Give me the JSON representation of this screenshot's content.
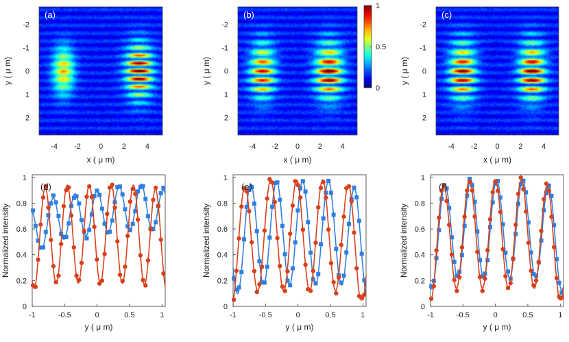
{
  "chart_data": [
    {
      "id": "a",
      "type": "heatmap",
      "panel_label": "(a)",
      "xlabel": "x ( μ m)",
      "ylabel": "y ( μ m)",
      "xlim": [
        -5.3,
        5.3
      ],
      "ylim": [
        -2.75,
        2.75
      ],
      "xticks": [
        -4,
        -2,
        0,
        2,
        4
      ],
      "yticks": [
        -2,
        -1,
        0,
        1,
        2
      ],
      "lobes": [
        {
          "cx": -3.2,
          "half_width": 1.05,
          "y_half": 1.25,
          "peak": 0.62,
          "fringe_period": 0.34,
          "fringe_mod": 0.35
        },
        {
          "cx": 3.3,
          "half_width": 1.35,
          "y_half": 1.45,
          "peak": 1.0,
          "fringe_period": 0.34,
          "fringe_mod": 0.9
        }
      ]
    },
    {
      "id": "b",
      "type": "heatmap",
      "panel_label": "(b)",
      "xlabel": "x ( μ m)",
      "ylabel": "y ( μ m)",
      "xlim": [
        -5.3,
        5.3
      ],
      "ylim": [
        -2.75,
        2.75
      ],
      "xticks": [
        -4,
        -2,
        0,
        2,
        4
      ],
      "yticks": [
        -2,
        -1,
        0,
        1,
        2
      ],
      "lobes": [
        {
          "cx": -3.1,
          "half_width": 1.3,
          "y_half": 1.5,
          "peak": 0.85,
          "fringe_period": 0.4,
          "fringe_mod": 0.85
        },
        {
          "cx": 2.8,
          "half_width": 1.4,
          "y_half": 1.5,
          "peak": 1.0,
          "fringe_period": 0.4,
          "fringe_mod": 0.85
        }
      ],
      "colorbar": {
        "ticks": [
          0,
          0.5,
          1
        ],
        "tick_labels": [
          "0",
          "0.5",
          "1"
        ]
      }
    },
    {
      "id": "c",
      "type": "heatmap",
      "panel_label": "(c)",
      "xlabel": "x ( μ m)",
      "ylabel": "y ( μ m)",
      "xlim": [
        -5.3,
        5.3
      ],
      "ylim": [
        -2.75,
        2.75
      ],
      "xticks": [
        -4,
        -2,
        0,
        2,
        4
      ],
      "yticks": [
        -2,
        -1,
        0,
        1,
        2
      ],
      "lobes": [
        {
          "cx": -3.0,
          "half_width": 1.3,
          "y_half": 1.55,
          "peak": 0.95,
          "fringe_period": 0.4,
          "fringe_mod": 0.9
        },
        {
          "cx": 3.0,
          "half_width": 1.3,
          "y_half": 1.55,
          "peak": 1.0,
          "fringe_period": 0.4,
          "fringe_mod": 0.9
        }
      ]
    },
    {
      "id": "d",
      "type": "scatter",
      "panel_label": "(d)",
      "xlabel": "y ( μ m)",
      "ylabel": "Normalized intensity",
      "xlim": [
        -1,
        1.05
      ],
      "ylim": [
        0,
        1.02
      ],
      "xticks": [
        -1,
        -0.5,
        0,
        0.5,
        1
      ],
      "xtick_labels": [
        "-1",
        "-0.5",
        "0",
        "0.5",
        "1"
      ],
      "yticks": [
        0,
        0.2,
        0.4,
        0.6,
        0.8,
        1
      ],
      "ytick_labels": [
        "0",
        "0.2",
        "0.4",
        "0.6",
        "0.8",
        "1"
      ],
      "series": [
        {
          "name": "blue",
          "color": "#2f7fe0",
          "marker": "square",
          "period": 0.34,
          "phase": 0.0,
          "mean": 0.73,
          "amp": 0.17,
          "trend": 0.08,
          "edge_drop": 0.25
        },
        {
          "name": "red",
          "color": "#d9401a",
          "marker": "circle",
          "period": 0.34,
          "phase": -0.12,
          "mean": 0.56,
          "amp": 0.38,
          "trend": 0.0,
          "edge_drop": 0.15
        }
      ]
    },
    {
      "id": "e",
      "type": "scatter",
      "panel_label": "(e)",
      "xlabel": "y ( μ m)",
      "ylabel": "Normalized intensity",
      "xlim": [
        -1,
        1.05
      ],
      "ylim": [
        0,
        1.02
      ],
      "xticks": [
        -1,
        -0.5,
        0,
        0.5,
        1
      ],
      "xtick_labels": [
        "-1",
        "-0.5",
        "0",
        "0.5",
        "1"
      ],
      "yticks": [
        0,
        0.2,
        0.4,
        0.6,
        0.8,
        1
      ],
      "ytick_labels": [
        "0",
        "0.2",
        "0.4",
        "0.6",
        "0.8",
        "1"
      ],
      "series": [
        {
          "name": "blue",
          "color": "#2f7fe0",
          "marker": "square",
          "period": 0.4,
          "phase": 0.07,
          "mean": 0.57,
          "amp": 0.4,
          "trend": 0.0,
          "edge_drop": 0.3
        },
        {
          "name": "red",
          "color": "#d9401a",
          "marker": "circle",
          "period": 0.4,
          "phase": -0.02,
          "mean": 0.55,
          "amp": 0.43,
          "trend": 0.0,
          "edge_drop": 0.35
        }
      ]
    },
    {
      "id": "f",
      "type": "scatter",
      "panel_label": "(f)",
      "xlabel": "y ( μ m)",
      "ylabel": "Normalized intensity",
      "xlim": [
        -1,
        1.05
      ],
      "ylim": [
        0,
        1.02
      ],
      "xticks": [
        -1,
        -0.5,
        0,
        0.5,
        1
      ],
      "xtick_labels": [
        "-1",
        "-0.5",
        "0",
        "0.5",
        "1"
      ],
      "yticks": [
        0,
        0.2,
        0.4,
        0.6,
        0.8,
        1
      ],
      "ytick_labels": [
        "0",
        "0.2",
        "0.4",
        "0.6",
        "0.8",
        "1"
      ],
      "series": [
        {
          "name": "blue",
          "color": "#2f7fe0",
          "marker": "square",
          "period": 0.4,
          "phase": 0.02,
          "mean": 0.6,
          "amp": 0.38,
          "trend": 0.0,
          "edge_drop": 0.3
        },
        {
          "name": "red",
          "color": "#d9401a",
          "marker": "circle",
          "period": 0.4,
          "phase": 0.0,
          "mean": 0.56,
          "amp": 0.42,
          "trend": 0.0,
          "edge_drop": 0.35
        }
      ]
    }
  ]
}
